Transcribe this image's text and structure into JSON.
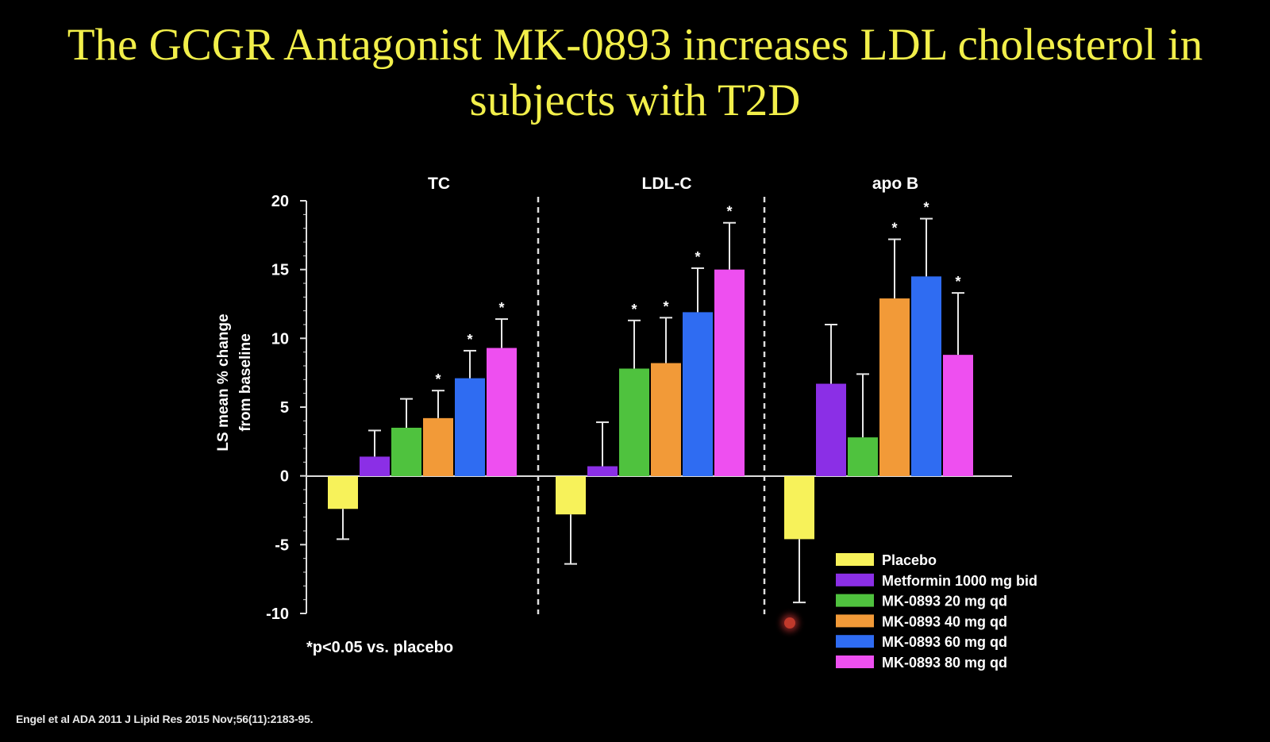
{
  "title": {
    "line1": "The GCGR Antagonist MK-0893 increases LDL cholesterol in",
    "line2": "subjects with T2D"
  },
  "citation": "Engel et al ADA 2011  J Lipid Res 2015 Nov;56(11):2183-95.",
  "chart_data": {
    "type": "bar",
    "categories": [
      "TC",
      "LDL-C",
      "apo B"
    ],
    "ylabel": "LS mean % change from baseline",
    "ylabel_lines": [
      "LS mean % change",
      "from baseline"
    ],
    "xlabel": "",
    "ylim": [
      -10,
      20
    ],
    "yticks": [
      20,
      15,
      10,
      5,
      0,
      -5,
      -10
    ],
    "footnote": "*p<0.05 vs. placebo",
    "significance_marker": "*",
    "legend_position": "bottom-right",
    "grid": false,
    "series": [
      {
        "name": "Placebo",
        "color": "#f7f25a",
        "values": [
          -2.4,
          -2.8,
          -4.6
        ],
        "errors": [
          2.2,
          3.6,
          4.6
        ],
        "significant": [
          false,
          false,
          false
        ]
      },
      {
        "name": "Metformin 1000 mg bid",
        "color": "#8b2fe6",
        "values": [
          1.4,
          0.7,
          6.7
        ],
        "errors": [
          1.9,
          3.2,
          4.3
        ],
        "significant": [
          false,
          false,
          false
        ]
      },
      {
        "name": "MK-0893 20 mg qd",
        "color": "#4fc23e",
        "values": [
          3.5,
          7.8,
          2.8
        ],
        "errors": [
          2.1,
          3.5,
          4.6
        ],
        "significant": [
          false,
          true,
          false
        ]
      },
      {
        "name": "MK-0893 40 mg qd",
        "color": "#f29a38",
        "values": [
          4.2,
          8.2,
          12.9
        ],
        "errors": [
          2.0,
          3.3,
          4.3
        ],
        "significant": [
          true,
          true,
          true
        ]
      },
      {
        "name": "MK-0893 60 mg qd",
        "color": "#2f6cf2",
        "values": [
          7.1,
          11.9,
          14.5
        ],
        "errors": [
          2.0,
          3.2,
          4.2
        ],
        "significant": [
          true,
          true,
          true
        ]
      },
      {
        "name": "MK-0893 80 mg qd",
        "color": "#ee4ff0",
        "values": [
          9.3,
          15.0,
          8.8
        ],
        "errors": [
          2.1,
          3.4,
          4.5
        ],
        "significant": [
          true,
          true,
          true
        ]
      }
    ]
  }
}
